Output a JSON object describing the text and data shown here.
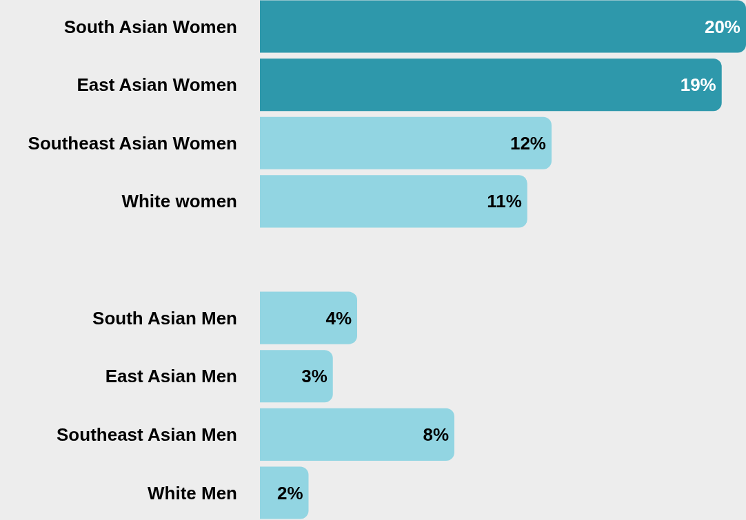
{
  "chart_data": {
    "type": "bar",
    "orientation": "horizontal",
    "categories": [
      "South Asian Women",
      "East Asian Women",
      "Southeast Asian Women",
      "White women",
      null,
      "South Asian Men",
      "East Asian Men",
      "Southeast Asian Men",
      "White Men"
    ],
    "values": [
      20,
      19,
      12,
      11,
      null,
      4,
      3,
      8,
      2
    ],
    "colors": [
      "#2e98ab",
      "#2e98ab",
      "#92d5e2",
      "#92d5e2",
      null,
      "#92d5e2",
      "#92d5e2",
      "#92d5e2",
      "#92d5e2"
    ],
    "value_labels": [
      "20%",
      "19%",
      "12%",
      "11%",
      null,
      "4%",
      "3%",
      "8%",
      "2%"
    ],
    "xlim": [
      0,
      20
    ],
    "tick_labels": "y"
  }
}
